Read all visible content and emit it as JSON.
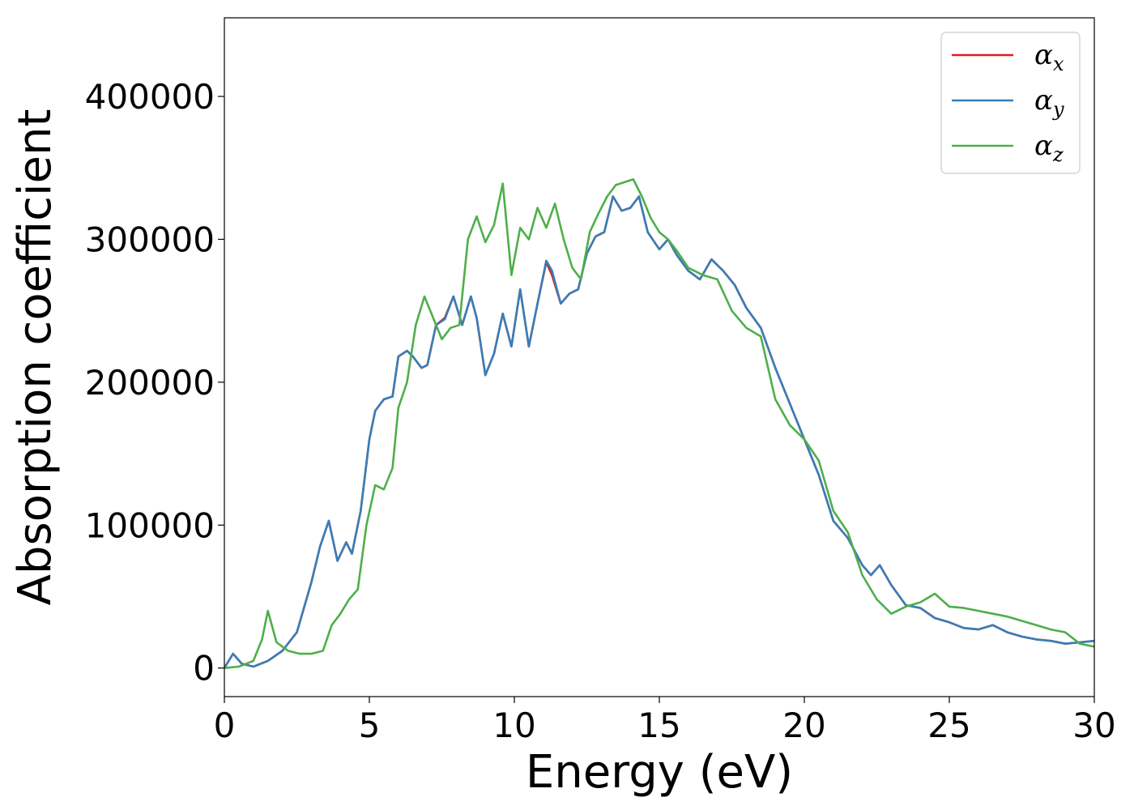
{
  "chart_data": {
    "type": "line",
    "title": "",
    "xlabel": "Energy (eV)",
    "ylabel": "Absorption coefficient",
    "xlim": [
      0,
      30
    ],
    "ylim": [
      -20000,
      455000
    ],
    "xticks": [
      0,
      5,
      10,
      15,
      20,
      25,
      30
    ],
    "yticks": [
      0,
      100000,
      200000,
      300000,
      400000
    ],
    "xtick_labels": [
      "0",
      "5",
      "10",
      "15",
      "20",
      "25",
      "30"
    ],
    "ytick_labels": [
      "0",
      "100000",
      "200000",
      "300000",
      "400000"
    ],
    "grid": false,
    "legend_position": "top-right",
    "series": [
      {
        "name": "α",
        "subscript": "x",
        "color": "#e41a1c",
        "x": [
          0,
          0.3,
          0.6,
          1,
          1.5,
          2,
          2.5,
          3,
          3.3,
          3.6,
          3.9,
          4.2,
          4.4,
          4.7,
          5,
          5.2,
          5.5,
          5.8,
          6,
          6.3,
          6.5,
          6.8,
          7,
          7.3,
          7.6,
          7.9,
          8.2,
          8.5,
          8.7,
          9,
          9.3,
          9.6,
          9.9,
          10.2,
          10.5,
          10.8,
          11.1,
          11.3,
          11.6,
          11.9,
          12.2,
          12.5,
          12.8,
          13.1,
          13.4,
          13.7,
          14,
          14.3,
          14.6,
          15,
          15.3,
          15.6,
          16,
          16.4,
          16.8,
          17.2,
          17.6,
          18,
          18.5,
          19,
          19.5,
          20,
          20.5,
          21,
          21.5,
          22,
          22.3,
          22.6,
          23,
          23.5,
          24,
          24.5,
          25,
          25.5,
          26,
          26.5,
          27,
          27.5,
          28,
          28.5,
          29,
          29.5,
          30
        ],
        "y": [
          0,
          10000,
          3000,
          1000,
          5000,
          12000,
          25000,
          60000,
          85000,
          103000,
          75000,
          88000,
          80000,
          110000,
          160000,
          180000,
          188000,
          190000,
          218000,
          222000,
          218000,
          210000,
          212000,
          240000,
          245000,
          260000,
          240000,
          260000,
          245000,
          205000,
          220000,
          248000,
          225000,
          265000,
          225000,
          255000,
          284000,
          275000,
          255000,
          262000,
          265000,
          290000,
          302000,
          305000,
          330000,
          320000,
          322000,
          330000,
          305000,
          293000,
          300000,
          289000,
          278000,
          272000,
          286000,
          278000,
          268000,
          252000,
          238000,
          210000,
          185000,
          160000,
          135000,
          103000,
          91000,
          72000,
          65000,
          72000,
          58000,
          44000,
          42000,
          35000,
          32000,
          28000,
          27000,
          30000,
          25000,
          22000,
          20000,
          19000,
          17000,
          18000,
          19000
        ]
      },
      {
        "name": "α",
        "subscript": "y",
        "color": "#377eb8",
        "x": [
          0,
          0.3,
          0.6,
          1,
          1.5,
          2,
          2.5,
          3,
          3.3,
          3.6,
          3.9,
          4.2,
          4.4,
          4.7,
          5,
          5.2,
          5.5,
          5.8,
          6,
          6.3,
          6.5,
          6.8,
          7,
          7.3,
          7.6,
          7.9,
          8.2,
          8.5,
          8.7,
          9,
          9.3,
          9.6,
          9.9,
          10.2,
          10.5,
          10.8,
          11.1,
          11.3,
          11.6,
          11.9,
          12.2,
          12.5,
          12.8,
          13.1,
          13.4,
          13.7,
          14,
          14.3,
          14.6,
          15,
          15.3,
          15.6,
          16,
          16.4,
          16.8,
          17.2,
          17.6,
          18,
          18.5,
          19,
          19.5,
          20,
          20.5,
          21,
          21.5,
          22,
          22.3,
          22.6,
          23,
          23.5,
          24,
          24.5,
          25,
          25.5,
          26,
          26.5,
          27,
          27.5,
          28,
          28.5,
          29,
          29.5,
          30
        ],
        "y": [
          0,
          10000,
          3000,
          1000,
          5000,
          12000,
          25000,
          60000,
          85000,
          103000,
          75000,
          88000,
          80000,
          110000,
          160000,
          180000,
          188000,
          190000,
          218000,
          222000,
          218000,
          210000,
          212000,
          240000,
          244000,
          260000,
          240000,
          260000,
          245000,
          205000,
          220000,
          248000,
          225000,
          265000,
          225000,
          255000,
          285000,
          278000,
          255000,
          262000,
          265000,
          290000,
          302000,
          305000,
          330000,
          320000,
          322000,
          330000,
          305000,
          293000,
          300000,
          289000,
          278000,
          272000,
          286000,
          278000,
          268000,
          252000,
          238000,
          210000,
          185000,
          160000,
          135000,
          103000,
          91000,
          72000,
          65000,
          72000,
          58000,
          44000,
          42000,
          35000,
          32000,
          28000,
          27000,
          30000,
          25000,
          22000,
          20000,
          19000,
          17000,
          18000,
          19000
        ]
      },
      {
        "name": "α",
        "subscript": "z",
        "color": "#4daf4a",
        "x": [
          0,
          0.5,
          1,
          1.3,
          1.5,
          1.8,
          2.2,
          2.6,
          3,
          3.4,
          3.7,
          4,
          4.3,
          4.6,
          4.9,
          5.2,
          5.5,
          5.8,
          6,
          6.3,
          6.6,
          6.9,
          7.2,
          7.5,
          7.8,
          8.1,
          8.4,
          8.7,
          9,
          9.3,
          9.6,
          9.9,
          10.2,
          10.5,
          10.8,
          11.1,
          11.4,
          11.7,
          12,
          12.3,
          12.6,
          12.9,
          13.2,
          13.5,
          13.8,
          14.1,
          14.4,
          14.7,
          15,
          15.3,
          15.6,
          16,
          16.5,
          17,
          17.5,
          18,
          18.5,
          19,
          19.5,
          20,
          20.5,
          21,
          21.5,
          22,
          22.5,
          23,
          23.5,
          24,
          24.5,
          25,
          25.5,
          26,
          26.5,
          27,
          27.5,
          28,
          28.5,
          29,
          29.5,
          30
        ],
        "y": [
          0,
          1000,
          5000,
          20000,
          40000,
          18000,
          12000,
          10000,
          10000,
          12000,
          30000,
          38000,
          48000,
          55000,
          100000,
          128000,
          125000,
          140000,
          182000,
          200000,
          240000,
          260000,
          245000,
          230000,
          238000,
          240000,
          300000,
          316000,
          298000,
          310000,
          339000,
          275000,
          308000,
          300000,
          322000,
          308000,
          325000,
          300000,
          280000,
          272000,
          305000,
          318000,
          330000,
          338000,
          340000,
          342000,
          330000,
          315000,
          305000,
          300000,
          292000,
          280000,
          275000,
          272000,
          250000,
          238000,
          232000,
          188000,
          170000,
          160000,
          145000,
          110000,
          95000,
          65000,
          48000,
          38000,
          43000,
          46000,
          52000,
          43000,
          42000,
          40000,
          38000,
          36000,
          33000,
          30000,
          27000,
          25000,
          17000,
          15000
        ]
      }
    ]
  }
}
